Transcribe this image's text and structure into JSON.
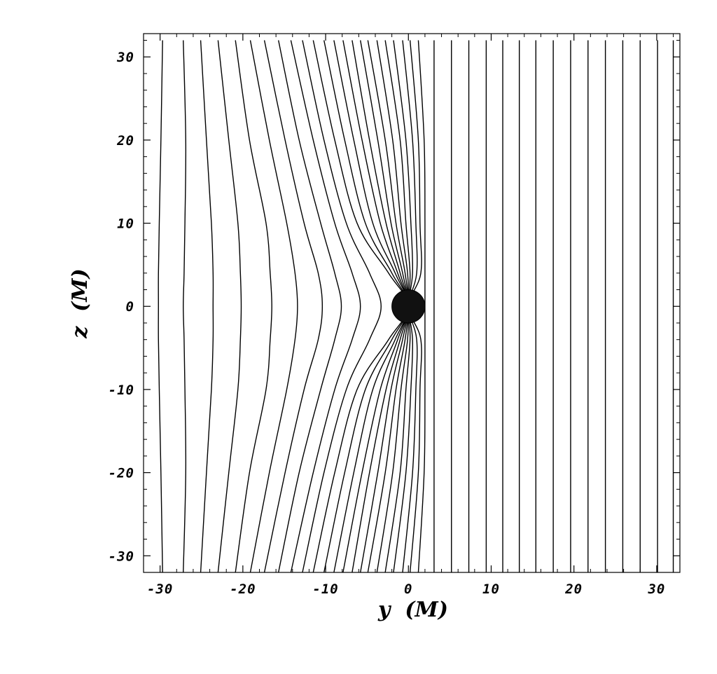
{
  "chart_data": {
    "type": "fieldlines",
    "xlabel": "y  (M)",
    "ylabel": "z  (M)",
    "xlim": [
      -32,
      32.8
    ],
    "ylim": [
      -32,
      32.8
    ],
    "xticks": [
      -30,
      -20,
      -10,
      0,
      10,
      20,
      30
    ],
    "yticks": [
      -30,
      -20,
      -10,
      0,
      10,
      20,
      30
    ],
    "xminorticks": [
      -32,
      -28,
      -26,
      -24,
      -22,
      -18,
      -16,
      -14,
      -12,
      -8,
      -6,
      -4,
      -2,
      2,
      4,
      6,
      8,
      12,
      14,
      16,
      18,
      22,
      24,
      26,
      28,
      32
    ],
    "yminorticks": [
      -32,
      -28,
      -26,
      -24,
      -22,
      -18,
      -16,
      -14,
      -12,
      -8,
      -6,
      -4,
      -2,
      2,
      4,
      6,
      8,
      12,
      14,
      16,
      18,
      22,
      24,
      26,
      28,
      32
    ],
    "line_color": "#000000",
    "horizon": {
      "y": 0,
      "z": 0,
      "r": 2,
      "color": "#111111"
    },
    "z": [
      32,
      20,
      10,
      4,
      0,
      -4,
      -10,
      -20,
      -32
    ],
    "series": [
      {
        "values": [
          -29.7,
          -29.9,
          -30.1,
          -30.2,
          -30.2,
          -30.2,
          -30.1,
          -29.9,
          -29.7
        ]
      },
      {
        "values": [
          -27.2,
          -26.9,
          -27.0,
          -27.1,
          -27.2,
          -27.1,
          -27.0,
          -26.9,
          -27.2
        ]
      },
      {
        "values": [
          -25.1,
          -24.4,
          -23.8,
          -23.6,
          -23.6,
          -23.6,
          -23.8,
          -24.4,
          -25.1
        ]
      },
      {
        "values": [
          -23.0,
          -21.7,
          -20.6,
          -20.3,
          -20.2,
          -20.3,
          -20.6,
          -21.7,
          -23.0
        ]
      },
      {
        "values": [
          -20.9,
          -19.2,
          -17.2,
          -16.7,
          -16.5,
          -16.7,
          -17.2,
          -19.2,
          -20.9
        ]
      },
      {
        "values": [
          -19.1,
          -16.8,
          -14.7,
          -13.7,
          -13.4,
          -13.7,
          -14.7,
          -16.8,
          -19.1
        ]
      },
      {
        "values": [
          -17.4,
          -14.9,
          -12.6,
          -10.9,
          -10.4,
          -10.9,
          -12.6,
          -14.9,
          -17.4
        ]
      },
      {
        "values": [
          -15.7,
          -13.2,
          -10.6,
          -8.9,
          -8.1,
          -8.9,
          -10.6,
          -13.2,
          -15.7
        ]
      },
      {
        "values": [
          -14.2,
          -11.5,
          -8.9,
          -6.8,
          -5.8,
          -6.8,
          -8.9,
          -11.5,
          -14.2
        ]
      },
      {
        "values": [
          -12.8,
          -10.2,
          -7.5,
          -4.7,
          -3.3,
          -4.7,
          -7.5,
          -10.2,
          -12.8
        ]
      },
      {
        "values": [
          -11.5,
          -8.9,
          -6.2,
          -2.4,
          0,
          -2.4,
          -6.2,
          -8.9,
          -11.5
        ]
      },
      {
        "values": [
          -10.2,
          -7.7,
          -5.2,
          -2.0,
          0,
          -2.0,
          -5.2,
          -7.7,
          -10.2
        ]
      },
      {
        "values": [
          -9.0,
          -6.6,
          -4.3,
          -1.6,
          0,
          -1.6,
          -4.3,
          -6.6,
          -9.0
        ]
      },
      {
        "values": [
          -7.9,
          -5.6,
          -3.4,
          -1.3,
          0,
          -1.3,
          -3.4,
          -5.6,
          -7.9
        ]
      },
      {
        "values": [
          -6.8,
          -4.7,
          -2.7,
          -1.0,
          0,
          -1.0,
          -2.7,
          -4.7,
          -6.8
        ]
      },
      {
        "values": [
          -5.8,
          -3.7,
          -2.1,
          -0.7,
          0,
          -0.7,
          -2.1,
          -3.7,
          -5.8
        ]
      },
      {
        "values": [
          -4.9,
          -2.8,
          -1.5,
          -0.4,
          0,
          -0.4,
          -1.5,
          -2.8,
          -4.9
        ]
      },
      {
        "values": [
          -3.8,
          -1.9,
          -0.9,
          -0.1,
          0,
          -0.1,
          -0.9,
          -1.9,
          -3.8
        ]
      },
      {
        "values": [
          -2.8,
          -1.0,
          -0.3,
          0.2,
          0,
          0.2,
          -0.3,
          -1.0,
          -2.8
        ]
      },
      {
        "values": [
          -1.8,
          -0.3,
          0.3,
          0.5,
          0,
          0.5,
          0.3,
          -0.3,
          -1.8
        ]
      },
      {
        "values": [
          -0.7,
          0.5,
          0.9,
          1.0,
          0,
          1.0,
          0.9,
          0.5,
          -0.7
        ]
      },
      {
        "values": [
          0.2,
          1.2,
          1.4,
          1.5,
          0,
          1.5,
          1.4,
          1.2,
          0.2
        ]
      },
      {
        "values": [
          1.2,
          1.9,
          2.0,
          2.0,
          2.0,
          2.0,
          2.0,
          1.9,
          1.2
        ]
      },
      {
        "values": [
          3.1,
          3.1,
          3.1,
          3.1,
          3.1,
          3.1,
          3.1,
          3.1,
          3.1
        ]
      },
      {
        "values": [
          5.2,
          5.2,
          5.2,
          5.2,
          5.2,
          5.2,
          5.2,
          5.2,
          5.2
        ]
      },
      {
        "values": [
          7.3,
          7.3,
          7.3,
          7.3,
          7.3,
          7.3,
          7.3,
          7.3,
          7.3
        ]
      },
      {
        "values": [
          9.4,
          9.4,
          9.4,
          9.4,
          9.4,
          9.4,
          9.4,
          9.4,
          9.4
        ]
      },
      {
        "values": [
          11.4,
          11.4,
          11.4,
          11.4,
          11.4,
          11.4,
          11.4,
          11.4,
          11.4
        ]
      },
      {
        "values": [
          13.4,
          13.4,
          13.4,
          13.4,
          13.4,
          13.4,
          13.4,
          13.4,
          13.4
        ]
      },
      {
        "values": [
          15.4,
          15.4,
          15.4,
          15.4,
          15.4,
          15.4,
          15.4,
          15.4,
          15.4
        ]
      },
      {
        "values": [
          17.5,
          17.5,
          17.5,
          17.5,
          17.5,
          17.5,
          17.5,
          17.5,
          17.5
        ]
      },
      {
        "values": [
          19.6,
          19.6,
          19.6,
          19.6,
          19.6,
          19.6,
          19.6,
          19.6,
          19.6
        ]
      },
      {
        "values": [
          21.7,
          21.7,
          21.7,
          21.7,
          21.7,
          21.7,
          21.7,
          21.7,
          21.7
        ]
      },
      {
        "values": [
          23.8,
          23.8,
          23.8,
          23.8,
          23.8,
          23.8,
          23.8,
          23.8,
          23.8
        ]
      },
      {
        "values": [
          25.9,
          25.9,
          25.9,
          25.9,
          25.9,
          25.9,
          25.9,
          25.9,
          25.9
        ]
      },
      {
        "values": [
          28.0,
          28.0,
          28.0,
          28.0,
          28.0,
          28.0,
          28.0,
          28.0,
          28.0
        ]
      },
      {
        "values": [
          30.1,
          30.1,
          30.1,
          30.1,
          30.1,
          30.1,
          30.1,
          30.1,
          30.1
        ]
      },
      {
        "values": [
          32.0,
          32.0,
          32.0,
          32.0,
          32.0,
          32.0,
          32.0,
          32.0,
          32.0
        ]
      }
    ]
  }
}
